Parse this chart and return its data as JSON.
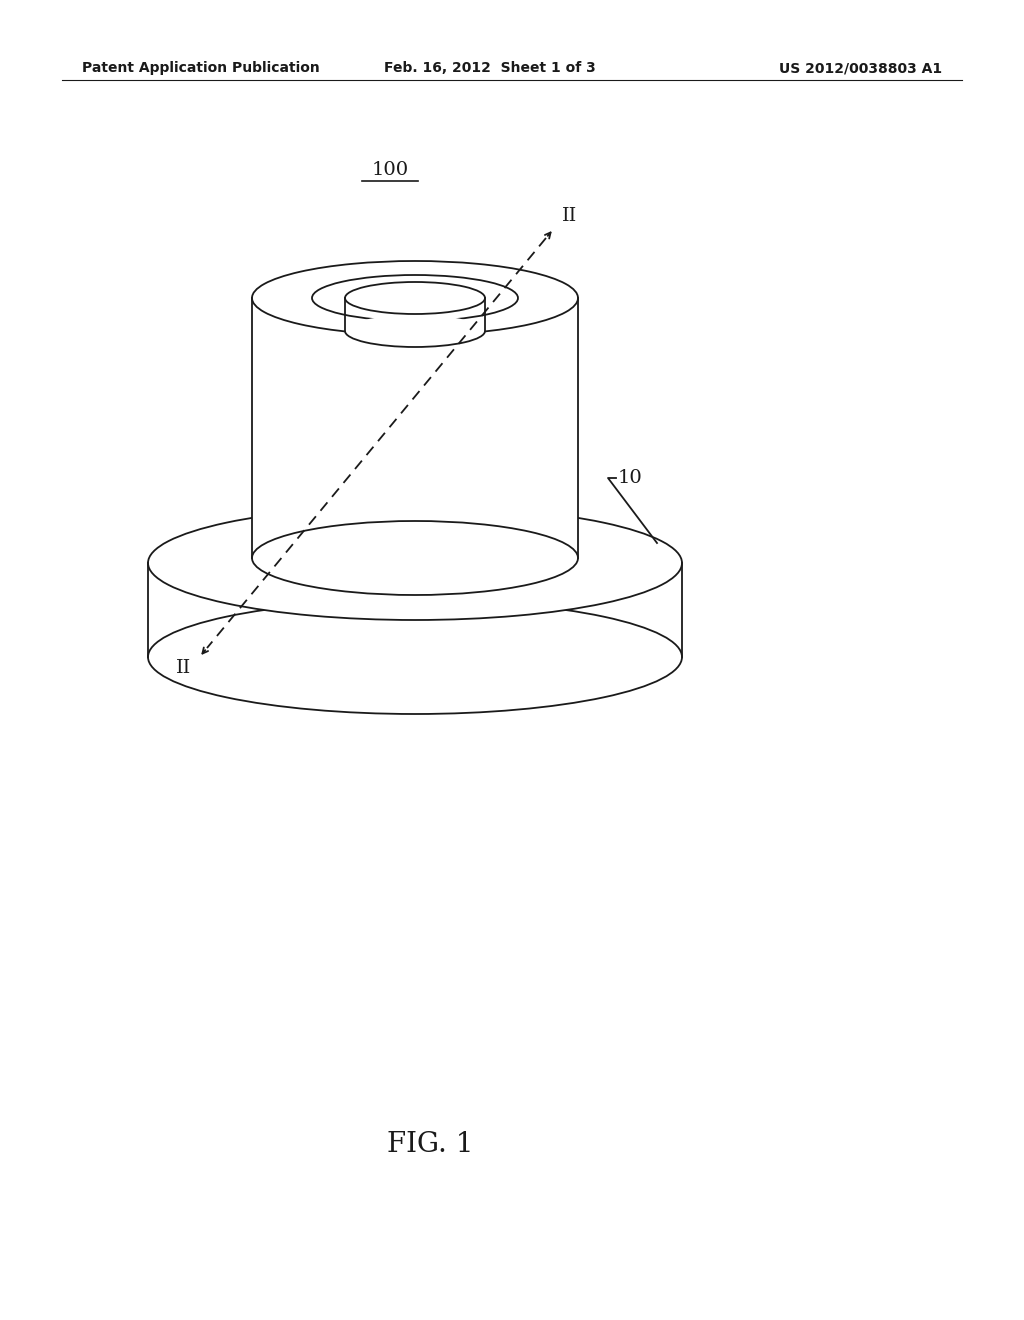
{
  "bg_color": "#ffffff",
  "line_color": "#1a1a1a",
  "header_left": "Patent Application Publication",
  "header_mid": "Feb. 16, 2012  Sheet 1 of 3",
  "header_right": "US 2012/0038803 A1",
  "label_100": "100",
  "label_10": "10",
  "label_II_top": "II",
  "label_II_bottom": "II",
  "fig_label": "FIG. 1",
  "header_fontsize": 10,
  "annotation_fontsize": 14,
  "fig_label_fontsize": 20
}
